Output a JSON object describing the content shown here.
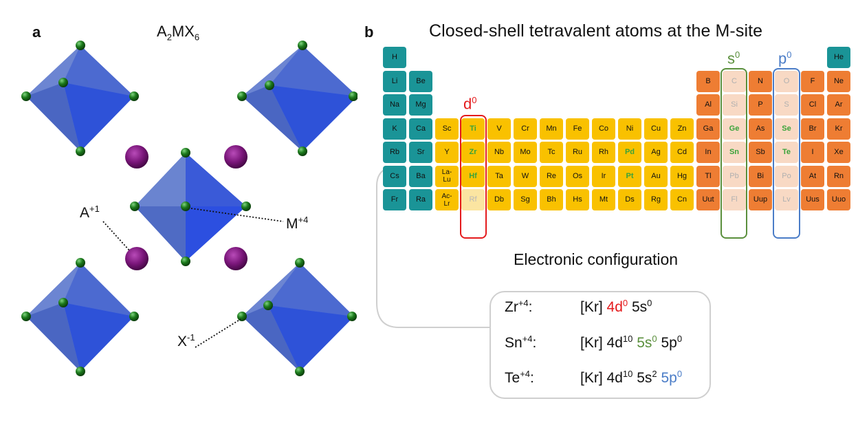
{
  "panel_a": {
    "label": "a",
    "formula": {
      "base1": "A",
      "sub1": "2",
      "base2": "MX",
      "sub2": "6"
    },
    "labels": {
      "a_ion": {
        "base": "A",
        "sup": "+1"
      },
      "m_ion": {
        "base": "M",
        "sup": "+4"
      },
      "x_ion": {
        "base": "X",
        "sup": "-1"
      }
    },
    "colors": {
      "octahedron": "#3f63c8",
      "x_atom": "#1c7a1c",
      "a_atom": "#7a167a"
    }
  },
  "panel_b": {
    "label": "b",
    "title": "Closed-shell tetravalent atoms at the M-site",
    "groups": {
      "d0": {
        "base": "d",
        "sup": "0",
        "color": "#e41a1c"
      },
      "s0": {
        "base": "s",
        "sup": "0",
        "color": "#5a8f3c"
      },
      "p0": {
        "base": "p",
        "sup": "0",
        "color": "#4a7cc7"
      }
    },
    "periodic_table": [
      [
        {
          "s": "H",
          "c": 1,
          "k": "alk"
        },
        {
          "s": "He",
          "c": 18,
          "k": "alk"
        }
      ],
      [
        {
          "s": "Li",
          "c": 1,
          "k": "alk"
        },
        {
          "s": "Be",
          "c": 2,
          "k": "alk"
        },
        {
          "s": "B",
          "c": 13,
          "k": "pb"
        },
        {
          "s": "C",
          "c": 14,
          "k": "fade"
        },
        {
          "s": "N",
          "c": 15,
          "k": "pb"
        },
        {
          "s": "O",
          "c": 16,
          "k": "fade"
        },
        {
          "s": "F",
          "c": 17,
          "k": "pb"
        },
        {
          "s": "Ne",
          "c": 18,
          "k": "pb"
        }
      ],
      [
        {
          "s": "Na",
          "c": 1,
          "k": "alk"
        },
        {
          "s": "Mg",
          "c": 2,
          "k": "alk"
        },
        {
          "s": "Al",
          "c": 13,
          "k": "pb"
        },
        {
          "s": "Si",
          "c": 14,
          "k": "fade"
        },
        {
          "s": "P",
          "c": 15,
          "k": "pb"
        },
        {
          "s": "S",
          "c": 16,
          "k": "fade"
        },
        {
          "s": "Cl",
          "c": 17,
          "k": "pb"
        },
        {
          "s": "Ar",
          "c": 18,
          "k": "pb"
        }
      ],
      [
        {
          "s": "K",
          "c": 1,
          "k": "alk"
        },
        {
          "s": "Ca",
          "c": 2,
          "k": "alk"
        },
        {
          "s": "Sc",
          "c": 3,
          "k": "tm"
        },
        {
          "s": "Ti",
          "c": 4,
          "k": "tm",
          "h": 1
        },
        {
          "s": "V",
          "c": 5,
          "k": "tm"
        },
        {
          "s": "Cr",
          "c": 6,
          "k": "tm"
        },
        {
          "s": "Mn",
          "c": 7,
          "k": "tm"
        },
        {
          "s": "Fe",
          "c": 8,
          "k": "tm"
        },
        {
          "s": "Co",
          "c": 9,
          "k": "tm"
        },
        {
          "s": "Ni",
          "c": 10,
          "k": "tm"
        },
        {
          "s": "Cu",
          "c": 11,
          "k": "tm"
        },
        {
          "s": "Zn",
          "c": 12,
          "k": "tm"
        },
        {
          "s": "Ga",
          "c": 13,
          "k": "pb"
        },
        {
          "s": "Ge",
          "c": 14,
          "k": "fade",
          "h": 1
        },
        {
          "s": "As",
          "c": 15,
          "k": "pb"
        },
        {
          "s": "Se",
          "c": 16,
          "k": "fade",
          "h": 1
        },
        {
          "s": "Br",
          "c": 17,
          "k": "pb"
        },
        {
          "s": "Kr",
          "c": 18,
          "k": "pb"
        }
      ],
      [
        {
          "s": "Rb",
          "c": 1,
          "k": "alk"
        },
        {
          "s": "Sr",
          "c": 2,
          "k": "alk"
        },
        {
          "s": "Y",
          "c": 3,
          "k": "tm"
        },
        {
          "s": "Zr",
          "c": 4,
          "k": "tm",
          "h": 1
        },
        {
          "s": "Nb",
          "c": 5,
          "k": "tm"
        },
        {
          "s": "Mo",
          "c": 6,
          "k": "tm"
        },
        {
          "s": "Tc",
          "c": 7,
          "k": "tm"
        },
        {
          "s": "Ru",
          "c": 8,
          "k": "tm"
        },
        {
          "s": "Rh",
          "c": 9,
          "k": "tm"
        },
        {
          "s": "Pd",
          "c": 10,
          "k": "tm",
          "h": 1
        },
        {
          "s": "Ag",
          "c": 11,
          "k": "tm"
        },
        {
          "s": "Cd",
          "c": 12,
          "k": "tm"
        },
        {
          "s": "In",
          "c": 13,
          "k": "pb"
        },
        {
          "s": "Sn",
          "c": 14,
          "k": "fade",
          "h": 1
        },
        {
          "s": "Sb",
          "c": 15,
          "k": "pb"
        },
        {
          "s": "Te",
          "c": 16,
          "k": "fade",
          "h": 1
        },
        {
          "s": "I",
          "c": 17,
          "k": "pb"
        },
        {
          "s": "Xe",
          "c": 18,
          "k": "pb"
        }
      ],
      [
        {
          "s": "Cs",
          "c": 1,
          "k": "alk"
        },
        {
          "s": "Ba",
          "c": 2,
          "k": "alk"
        },
        {
          "s": "La-\nLu",
          "c": 3,
          "k": "tm"
        },
        {
          "s": "Hf",
          "c": 4,
          "k": "tm",
          "h": 1
        },
        {
          "s": "Ta",
          "c": 5,
          "k": "tm"
        },
        {
          "s": "W",
          "c": 6,
          "k": "tm"
        },
        {
          "s": "Re",
          "c": 7,
          "k": "tm"
        },
        {
          "s": "Os",
          "c": 8,
          "k": "tm"
        },
        {
          "s": "Ir",
          "c": 9,
          "k": "tm"
        },
        {
          "s": "Pt",
          "c": 10,
          "k": "tm",
          "h": 1
        },
        {
          "s": "Au",
          "c": 11,
          "k": "tm"
        },
        {
          "s": "Hg",
          "c": 12,
          "k": "tm"
        },
        {
          "s": "Tl",
          "c": 13,
          "k": "pb"
        },
        {
          "s": "Pb",
          "c": 14,
          "k": "fade"
        },
        {
          "s": "Bi",
          "c": 15,
          "k": "pb"
        },
        {
          "s": "Po",
          "c": 16,
          "k": "fade"
        },
        {
          "s": "At",
          "c": 17,
          "k": "pb"
        },
        {
          "s": "Rn",
          "c": 18,
          "k": "pb"
        }
      ],
      [
        {
          "s": "Fr",
          "c": 1,
          "k": "alk"
        },
        {
          "s": "Ra",
          "c": 2,
          "k": "alk"
        },
        {
          "s": "Ac-\nLr",
          "c": 3,
          "k": "tm"
        },
        {
          "s": "Rf",
          "c": 4,
          "k": "fade-tm"
        },
        {
          "s": "Db",
          "c": 5,
          "k": "tm"
        },
        {
          "s": "Sg",
          "c": 6,
          "k": "tm"
        },
        {
          "s": "Bh",
          "c": 7,
          "k": "tm"
        },
        {
          "s": "Hs",
          "c": 8,
          "k": "tm"
        },
        {
          "s": "Mt",
          "c": 9,
          "k": "tm"
        },
        {
          "s": "Ds",
          "c": 10,
          "k": "tm"
        },
        {
          "s": "Rg",
          "c": 11,
          "k": "tm"
        },
        {
          "s": "Cn",
          "c": 12,
          "k": "tm"
        },
        {
          "s": "Uut",
          "c": 13,
          "k": "pb"
        },
        {
          "s": "Fl",
          "c": 14,
          "k": "fade"
        },
        {
          "s": "Uup",
          "c": 15,
          "k": "pb"
        },
        {
          "s": "Lv",
          "c": 16,
          "k": "fade"
        },
        {
          "s": "Uus",
          "c": 17,
          "k": "pb"
        },
        {
          "s": "Uuo",
          "c": 18,
          "k": "pb"
        }
      ]
    ],
    "colors": {
      "alkali": "#1a9497",
      "transition": "#f9c100",
      "p_block": "#ee7d33",
      "highlight_text": "#3aa33a"
    },
    "config_title": "Electronic configuration",
    "configs": [
      {
        "ion": "Zr",
        "ion_sup": "+4",
        "colon": ":",
        "core": "[Kr]",
        "parts": [
          {
            "base": "4d",
            "sup": "0",
            "color": "#e41a1c"
          },
          {
            "base": "5s",
            "sup": "0",
            "color": "#111111"
          }
        ]
      },
      {
        "ion": "Sn",
        "ion_sup": "+4",
        "colon": ":",
        "core": "[Kr]",
        "parts": [
          {
            "base": "4d",
            "sup": "10",
            "color": "#111111"
          },
          {
            "base": "5s",
            "sup": "0",
            "color": "#5a8f3c"
          },
          {
            "base": "5p",
            "sup": "0",
            "color": "#111111"
          }
        ]
      },
      {
        "ion": "Te",
        "ion_sup": "+4",
        "colon": ":",
        "core": "[Kr]",
        "parts": [
          {
            "base": "4d",
            "sup": "10",
            "color": "#111111"
          },
          {
            "base": "5s",
            "sup": "2",
            "color": "#111111"
          },
          {
            "base": "5p",
            "sup": "0",
            "color": "#4a7cc7"
          }
        ]
      }
    ]
  }
}
